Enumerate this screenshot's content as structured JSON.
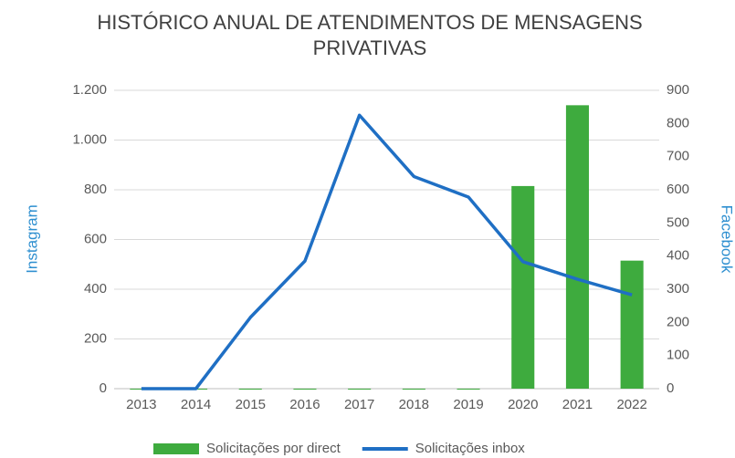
{
  "chart_data": {
    "type": "bar-line",
    "title": [
      "HISTÓRICO ANUAL DE ATENDIMENTOS DE MENSAGENS",
      "PRIVATIVAS"
    ],
    "y_label": "Instagram",
    "y2_label": "Facebook",
    "categories": [
      "2013",
      "2014",
      "2015",
      "2016",
      "2017",
      "2018",
      "2019",
      "2020",
      "2021",
      "2022"
    ],
    "series": [
      {
        "name": "Solicitações por direct",
        "type": "bar",
        "color": "#3eab3e",
        "values": [
          0,
          0,
          0,
          0,
          0,
          0,
          0,
          815,
          1140,
          515
        ]
      },
      {
        "name": "Solicitações inbox",
        "type": "line",
        "axis": "y2",
        "color": "#1f6fc4",
        "values": [
          0,
          0,
          215,
          385,
          825,
          640,
          578,
          383,
          330,
          283
        ]
      }
    ],
    "ylim": [
      0,
      1200
    ],
    "yticks": [
      0,
      200,
      400,
      600,
      800,
      {
        "value": 1000,
        "label": "1.000"
      },
      {
        "value": 1200,
        "label": "1.200"
      }
    ],
    "y2lim": [
      0,
      900
    ],
    "y2ticks": [
      0,
      100,
      200,
      300,
      400,
      500,
      600,
      700,
      800,
      900
    ],
    "grid": true,
    "legend": "bottom"
  }
}
